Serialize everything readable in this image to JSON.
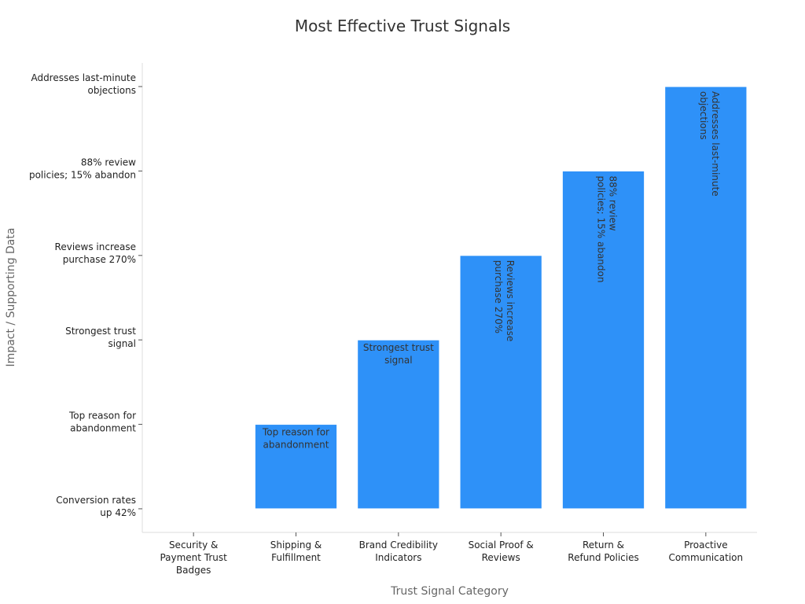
{
  "chart_data": {
    "type": "bar",
    "title": "Most Effective Trust Signals",
    "xlabel": "Trust Signal Category",
    "ylabel": "Impact / Supporting Data",
    "categories": [
      "Security & Payment Trust Badges",
      "Shipping & Fulfillment",
      "Brand Credibility Indicators",
      "Social Proof & Reviews",
      "Return & Refund Policies",
      "Proactive Communication"
    ],
    "category_label_lines": [
      [
        "Security &",
        "Payment Trust",
        "Badges"
      ],
      [
        "Shipping &",
        "Fulfillment"
      ],
      [
        "Brand Credibility",
        "Indicators"
      ],
      [
        "Social Proof &",
        "Reviews"
      ],
      [
        "Return &",
        "Refund Policies"
      ],
      [
        "Proactive",
        "Communication"
      ]
    ],
    "y_tick_labels": [
      "Conversion rates up 42%",
      "Top reason for abandonment",
      "Strongest trust signal",
      "Reviews increase purchase 270%",
      "88% review policies; 15% abandon",
      "Addresses last-minute objections"
    ],
    "y_tick_label_lines": [
      [
        "Conversion rates",
        "up 42%"
      ],
      [
        "Top reason for",
        "abandonment"
      ],
      [
        "Strongest trust",
        "signal"
      ],
      [
        "Reviews increase",
        "purchase 270%"
      ],
      [
        "88% review",
        "policies; 15% abandon"
      ],
      [
        "Addresses last-minute",
        "objections"
      ]
    ],
    "values": [
      0,
      1,
      2,
      3,
      4,
      5
    ],
    "ylim": [
      -0.28,
      5.28
    ],
    "bar_labels": [
      "",
      "Top reason for abandonment",
      "Strongest trust signal",
      "Reviews increase purchase 270%",
      "88% review policies; 15% abandon",
      "Addresses last-minute objections"
    ],
    "bar_label_lines": [
      [],
      [
        "Top reason for",
        "abandonment"
      ],
      [
        "Strongest trust",
        "signal"
      ],
      [
        "Reviews increase",
        "purchase 270%"
      ],
      [
        "88% review",
        "policies; 15% abandon"
      ],
      [
        "Addresses last-minute",
        "objections"
      ]
    ],
    "bar_label_rotated": [
      false,
      false,
      false,
      true,
      true,
      true
    ],
    "bar_color": "#2E91F8",
    "grid": false,
    "legend": "none"
  }
}
